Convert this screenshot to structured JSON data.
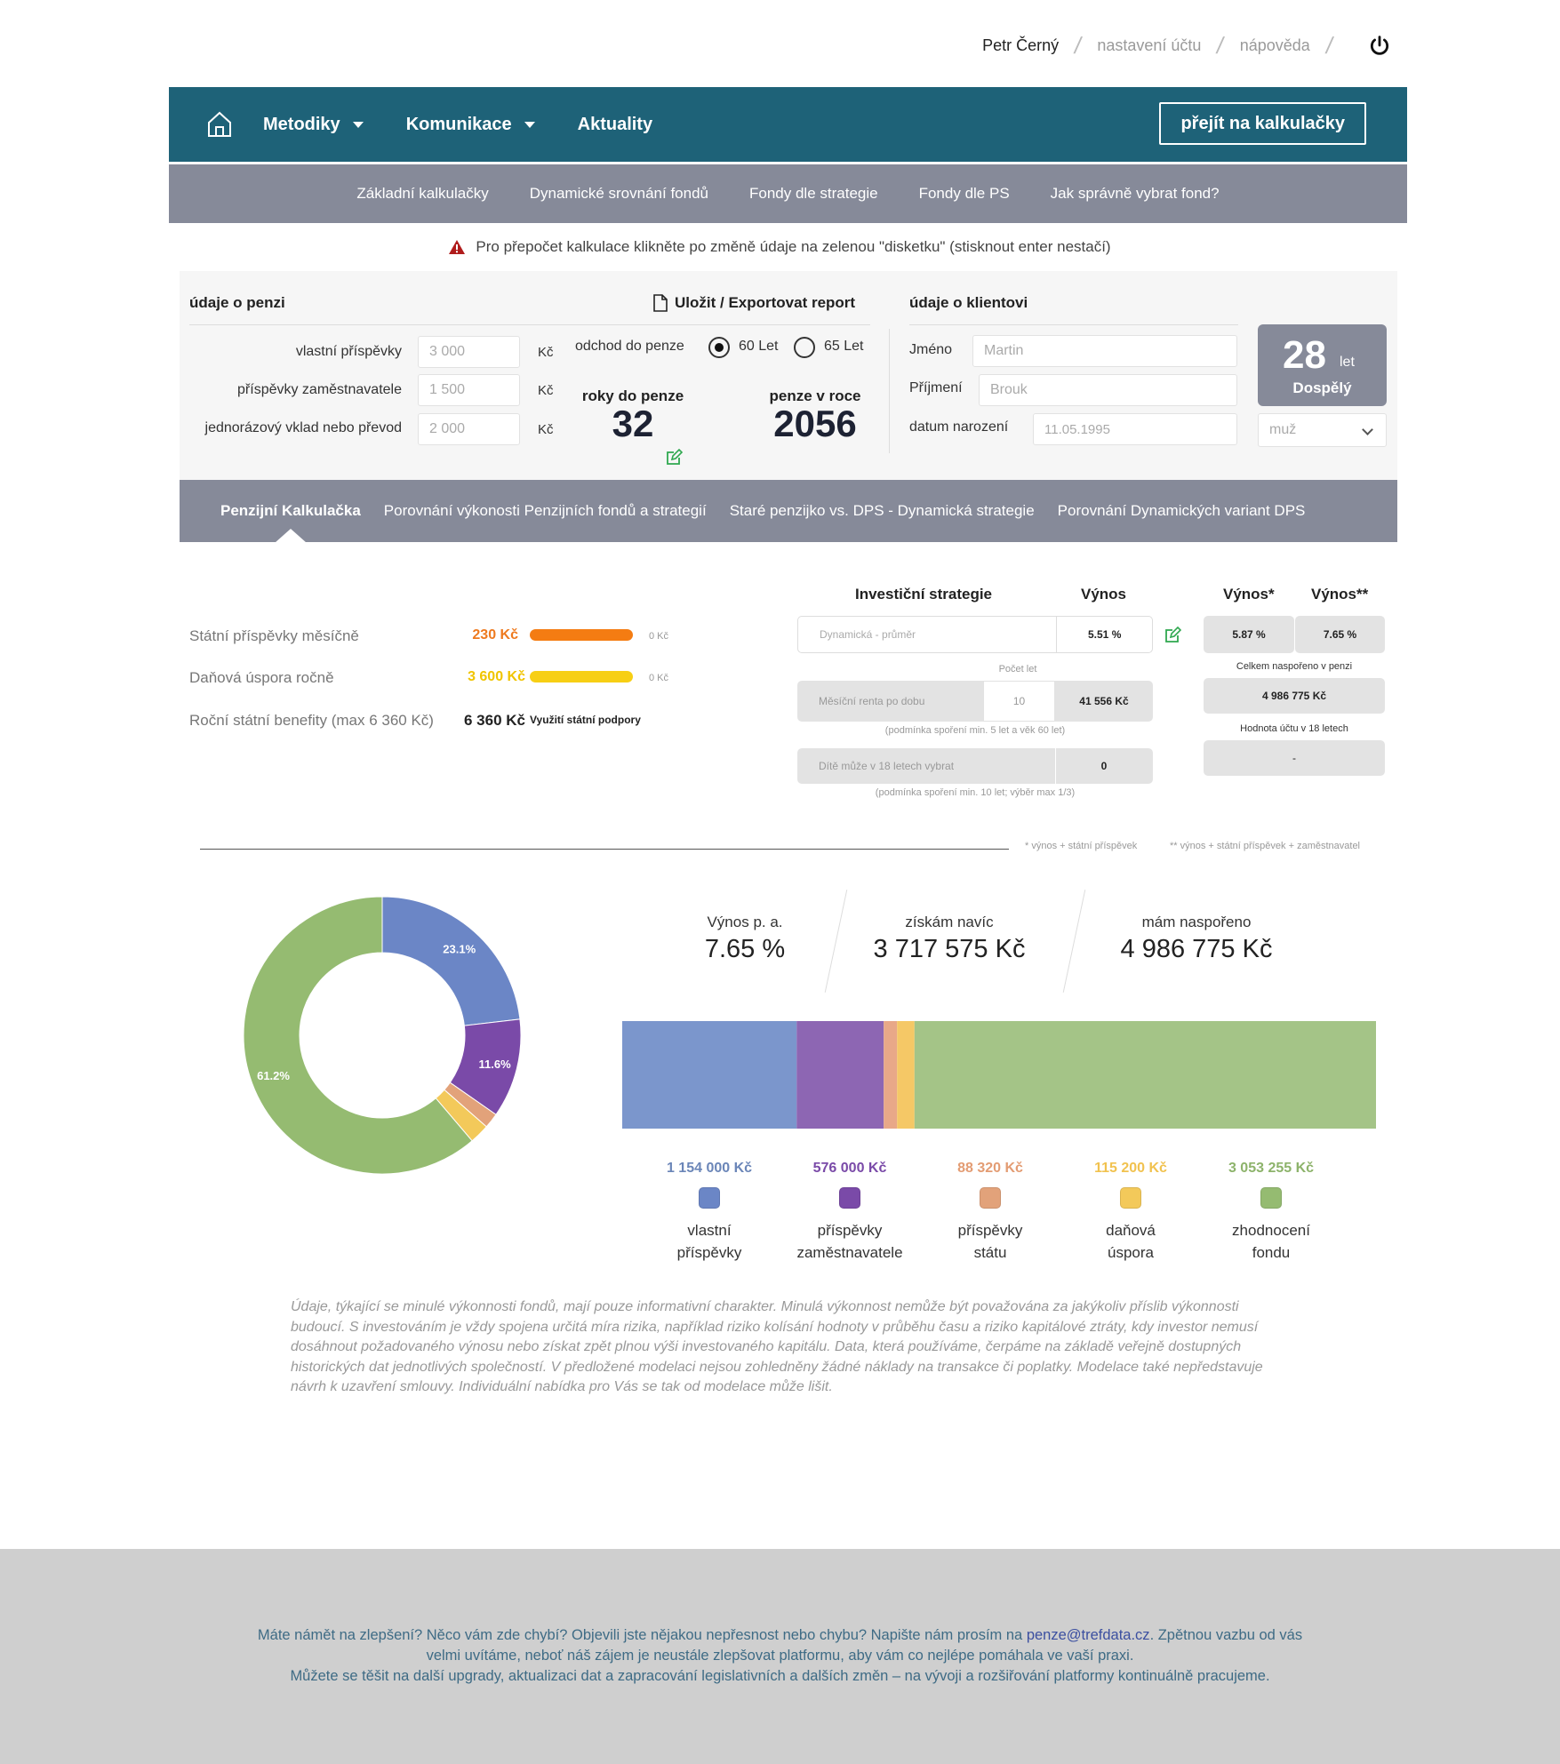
{
  "userbar": {
    "user": "Petr Černý",
    "account_settings": "nastavení účtu",
    "help": "nápověda"
  },
  "mainnav": {
    "items": [
      "Metodiky",
      "Komunikace",
      "Aktuality"
    ],
    "calc_button": "přejít na kalkulačky"
  },
  "subnav": {
    "items": [
      "Základní kalkulačky",
      "Dynamické srovnání fondů",
      "Fondy dle strategie",
      "Fondy dle PS",
      "Jak správně vybrat fond?"
    ]
  },
  "warning": "Pro přepočet kalkulace klikněte po změně údaje na zelenou \"disketku\" (stisknout enter nestačí)",
  "pension": {
    "title": "údaje o penzi",
    "export": "Uložit / Exportovat report",
    "own_label": "vlastní příspěvky",
    "own_value": "3 000",
    "employer_label": "příspěvky zaměstnavatele",
    "employer_value": "1 500",
    "single_label": "jednorázový vklad nebo převod",
    "single_value": "2 000",
    "unit": "Kč",
    "retire_label": "odchod do penze",
    "retire_opt1": "60 Let",
    "retire_opt2": "65 Let",
    "years_label": "roky do penze",
    "years_value": "32",
    "year_label": "penze v roce",
    "year_value": "2056"
  },
  "client": {
    "title": "údaje o klientovi",
    "first_label": "Jméno",
    "first_value": "Martin",
    "last_label": "Příjmení",
    "last_value": "Brouk",
    "birth_label": "datum narození",
    "birth_value": "11.05.1995",
    "age": "28",
    "age_unit": "let",
    "age_group": "Dospělý",
    "gender": "muž"
  },
  "tabs": [
    "Penzijní Kalkulačka",
    "Porovnání výkonosti Penzijních fondů a strategií",
    "Staré penzijko vs. DPS - Dynamická strategie",
    "Porovnání Dynamických variant DPS"
  ],
  "benefits": {
    "monthly_label": "Státní příspěvky měsíčně",
    "monthly_value": "230 Kč",
    "tax_label": "Daňová úspora ročně",
    "tax_value": "3 600 Kč",
    "annual_label": "Roční státní benefity (max 6 360 Kč)",
    "annual_value": "6 360 Kč",
    "annual_note": "Využití státní podpory",
    "zero": "0 Kč"
  },
  "strategy": {
    "h_strategy": "Investiční strategie",
    "h_yield": "Výnos",
    "h_yield1": "Výnos*",
    "h_yield2": "Výnos**",
    "strategy_value": "Dynamická - průměr",
    "yield_value": "5.51 %",
    "yield1_value": "5.87 %",
    "yield2_value": "7.65 %",
    "years_count_label": "Počet let",
    "rent_label": "Měsíční renta po dobu",
    "rent_years": "10",
    "rent_value": "41 556 Kč",
    "rent_cond": "(podmínka spoření min. 5 let a věk 60 let)",
    "total_label": "Celkem naspořeno v penzi",
    "total_value": "4 986 775 Kč",
    "child_label": "Dítě může v 18 letech vybrat",
    "child_value": "0",
    "child_cond": "(podmínka spoření min. 10 let; výběr max 1/3)",
    "account18_label": "Hodnota účtu v 18 letech",
    "account18_value": "-",
    "note1": "* výnos + státní příspěvek",
    "note2": "** výnos + státní příspěvek + zaměstnavatel"
  },
  "stats": {
    "yield_label": "Výnos p. a.",
    "yield_value": "7.65 %",
    "gain_label": "získám navíc",
    "gain_value": "3 717 575 Kč",
    "saved_label": "mám naspořeno",
    "saved_value": "4 986 775 Kč"
  },
  "chart_data": {
    "type": "pie",
    "categories": [
      "vlastní příspěvky",
      "příspěvky zaměstnavatele",
      "příspěvky státu",
      "daňová úspora",
      "zhodnocení fondu"
    ],
    "values": [
      1154000,
      576000,
      88320,
      115200,
      3053255
    ],
    "value_labels": [
      "1 154 000 Kč",
      "576 000 Kč",
      "88 320 Kč",
      "115 200 Kč",
      "3 053 255 Kč"
    ],
    "label_lines": [
      [
        "vlastní",
        "příspěvky"
      ],
      [
        "příspěvky",
        "zaměstnavatele"
      ],
      [
        "příspěvky",
        "státu"
      ],
      [
        "daňová",
        "úspora"
      ],
      [
        "zhodnocení",
        "fondu"
      ]
    ],
    "percent_labels": [
      "23.1%",
      "11.6%",
      "",
      "",
      "61.2%"
    ],
    "colors": [
      "#6b86c6",
      "#7a4aa8",
      "#e2a27a",
      "#f3c95a",
      "#95bb71"
    ],
    "bar_colors": [
      "#7b96cc",
      "#8d66b3",
      "#e8a888",
      "#f5c866",
      "#a4c487"
    ],
    "legend_text_colors": [
      "#6b86b8",
      "#7a4aa8",
      "#e39c73",
      "#f1c24f",
      "#8db36b"
    ]
  },
  "disclaimer": "Údaje, týkající se minulé výkonnosti fondů, mají pouze informativní charakter. Minulá výkonnost nemůže být považována za jakýkoliv příslib výkonnosti budoucí. S investováním je vždy spojena určitá míra rizika, například riziko kolísání hodnoty v průběhu času a riziko kapitálové ztráty, kdy investor nemusí dosáhnout požadovaného výnosu nebo získat zpět plnou výši investovaného kapitálu. Data, která používáme, čerpáme na základě veřejně dostupných historických dat jednotlivých společností. V předložené modelaci nejsou zohledněny žádné náklady na transakce či poplatky. Modelace také nepředstavuje návrh k uzavření smlouvy. Individuální nabídka pro Vás se tak od modelace může lišit.",
  "footer": {
    "line1a": "Máte námět na zlepšení? Něco vám zde chybí? Objevili jste nějakou nepřesnost nebo chybu? Napište nám prosím na ",
    "email": "penze@trefdata.cz",
    "line1b": ". Zpětnou vazbu od vás",
    "line2": "velmi uvítáme, neboť náš zájem je neustále zlepšovat platformu, aby vám co nejlépe pomáhala ve vaší praxi.",
    "line3": "Můžete se těšit na další upgrady, aktualizaci dat a zapracování legislativních a dalších změn – na vývoji a rozšiřování platformy kontinuálně pracujeme."
  }
}
